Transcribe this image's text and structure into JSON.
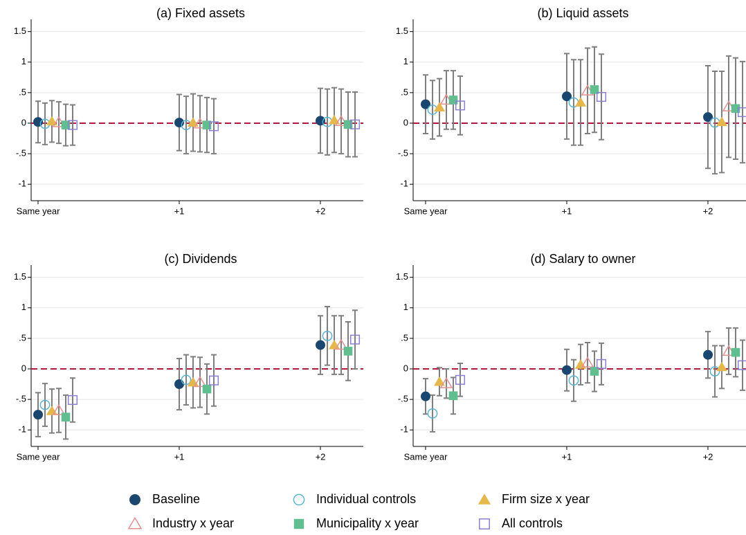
{
  "chart_data": [
    {
      "type": "errorbar",
      "title": "(a) Fixed assets",
      "categories": [
        "Same year",
        "+1",
        "+2"
      ],
      "series": [
        {
          "values": [
            0.02,
            0.01,
            0.04
          ],
          "errors": [
            0.34,
            0.46,
            0.53
          ]
        },
        {
          "values": [
            -0.01,
            -0.03,
            0.02
          ],
          "errors": [
            0.34,
            0.47,
            0.54
          ]
        },
        {
          "values": [
            0.03,
            0.01,
            0.05
          ],
          "errors": [
            0.34,
            0.47,
            0.53
          ]
        },
        {
          "values": [
            0.01,
            -0.01,
            0.03
          ],
          "errors": [
            0.34,
            0.46,
            0.53
          ]
        },
        {
          "values": [
            -0.03,
            -0.03,
            -0.02
          ],
          "errors": [
            0.34,
            0.45,
            0.53
          ]
        },
        {
          "values": [
            -0.03,
            -0.05,
            -0.02
          ],
          "errors": [
            0.33,
            0.45,
            0.53
          ]
        }
      ],
      "ylim": [
        -1.27,
        1.7
      ],
      "yticks": [
        -1,
        {
          "value": -0.5,
          "label": "-.5"
        },
        0,
        {
          "value": 0.5,
          "label": ".5"
        },
        1,
        1.5
      ],
      "grid": true,
      "refline": 0
    },
    {
      "type": "errorbar",
      "title": "(b) Liquid assets",
      "categories": [
        "Same year",
        "+1",
        "+2"
      ],
      "series": [
        {
          "values": [
            0.31,
            0.44,
            0.1
          ],
          "errors": [
            0.48,
            0.7,
            0.84
          ]
        },
        {
          "values": [
            0.22,
            0.34,
            0.01
          ],
          "errors": [
            0.48,
            0.7,
            0.84
          ]
        },
        {
          "values": [
            0.26,
            0.34,
            0.02
          ],
          "errors": [
            0.47,
            0.7,
            0.83
          ]
        },
        {
          "values": [
            0.38,
            0.53,
            0.27
          ],
          "errors": [
            0.48,
            0.7,
            0.83
          ]
        },
        {
          "values": [
            0.38,
            0.55,
            0.24
          ],
          "errors": [
            0.48,
            0.7,
            0.83
          ]
        },
        {
          "values": [
            0.29,
            0.43,
            0.18
          ],
          "errors": [
            0.48,
            0.7,
            0.83
          ]
        }
      ],
      "ylim": [
        -1.27,
        1.7
      ],
      "yticks": [
        -1,
        {
          "value": -0.5,
          "label": "-.5"
        },
        0,
        {
          "value": 0.5,
          "label": ".5"
        },
        1,
        1.5
      ],
      "grid": true,
      "refline": 0
    },
    {
      "type": "errorbar",
      "title": "(c) Dividends",
      "categories": [
        "Same year",
        "+1",
        "+2"
      ],
      "series": [
        {
          "values": [
            -0.75,
            -0.25,
            0.39
          ],
          "errors": [
            0.36,
            0.42,
            0.48
          ]
        },
        {
          "values": [
            -0.59,
            -0.18,
            0.54
          ],
          "errors": [
            0.35,
            0.41,
            0.48
          ]
        },
        {
          "values": [
            -0.69,
            -0.22,
            0.39
          ],
          "errors": [
            0.36,
            0.42,
            0.48
          ]
        },
        {
          "values": [
            -0.68,
            -0.22,
            0.39
          ],
          "errors": [
            0.36,
            0.41,
            0.48
          ]
        },
        {
          "values": [
            -0.79,
            -0.33,
            0.29
          ],
          "errors": [
            0.36,
            0.41,
            0.48
          ]
        },
        {
          "values": [
            -0.51,
            -0.19,
            0.48
          ],
          "errors": [
            0.36,
            0.42,
            0.48
          ]
        }
      ],
      "ylim": [
        -1.27,
        1.7
      ],
      "yticks": [
        -1,
        {
          "value": -0.5,
          "label": "-.5"
        },
        0,
        {
          "value": 0.5,
          "label": ".5"
        },
        1,
        1.5
      ],
      "grid": true,
      "refline": 0
    },
    {
      "type": "errorbar",
      "title": "(d) Salary to owner",
      "categories": [
        "Same year",
        "+1",
        "+2"
      ],
      "series": [
        {
          "values": [
            -0.45,
            -0.02,
            0.23
          ],
          "errors": [
            0.29,
            0.34,
            0.38
          ]
        },
        {
          "values": [
            -0.73,
            -0.19,
            -0.04
          ],
          "errors": [
            0.3,
            0.34,
            0.42
          ]
        },
        {
          "values": [
            -0.21,
            0.07,
            0.03
          ],
          "errors": [
            0.23,
            0.33,
            0.35
          ]
        },
        {
          "values": [
            -0.24,
            0.1,
            0.29
          ],
          "errors": [
            0.24,
            0.33,
            0.38
          ]
        },
        {
          "values": [
            -0.44,
            -0.04,
            0.27
          ],
          "errors": [
            0.3,
            0.33,
            0.4
          ]
        },
        {
          "values": [
            -0.18,
            0.08,
            0.06
          ],
          "errors": [
            0.27,
            0.34,
            0.41
          ]
        }
      ],
      "ylim": [
        -1.27,
        1.7
      ],
      "yticks": [
        -1,
        {
          "value": -0.5,
          "label": "-.5"
        },
        0,
        {
          "value": 0.5,
          "label": ".5"
        },
        1,
        1.5
      ],
      "grid": true,
      "refline": 0
    }
  ],
  "legend": [
    {
      "name": "Baseline",
      "color": "#1a476f",
      "marker": "circle-filled"
    },
    {
      "name": "Individual controls",
      "color": "#55b4d4",
      "marker": "circle-open"
    },
    {
      "name": "Firm size x year",
      "color": "#e6b84a",
      "marker": "triangle-filled"
    },
    {
      "name": "Industry x year",
      "color": "#e88f8f",
      "marker": "triangle-open"
    },
    {
      "name": "Municipality x year",
      "color": "#5fbf8f",
      "marker": "square-filled"
    },
    {
      "name": "All controls",
      "color": "#8b7fd1",
      "marker": "square-open"
    }
  ]
}
